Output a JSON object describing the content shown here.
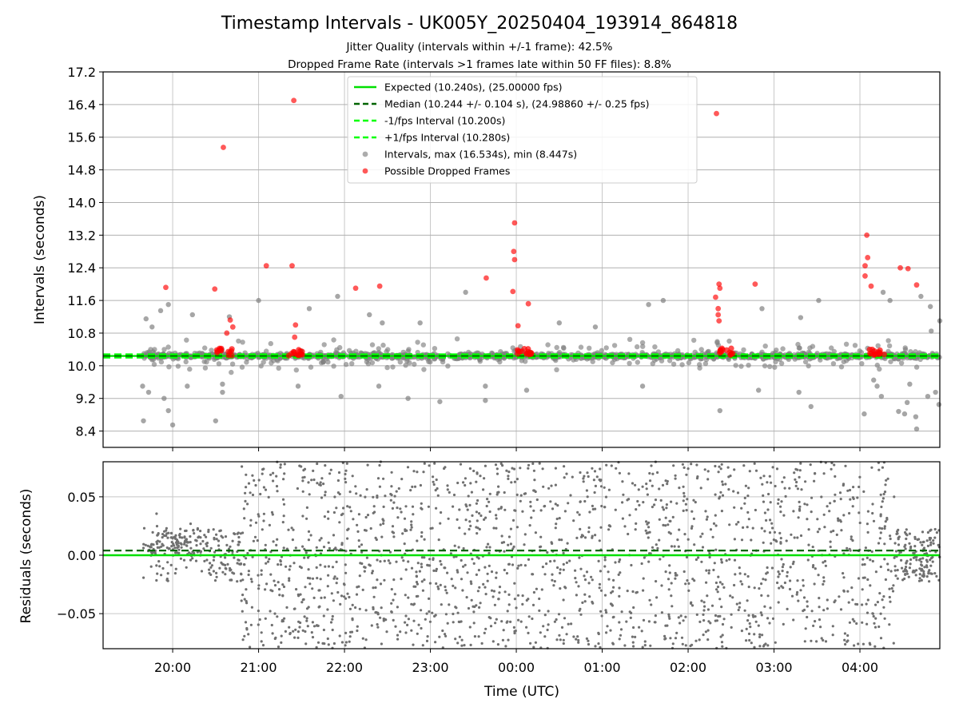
{
  "chart_data": [
    {
      "type": "scatter",
      "panel": "intervals",
      "title": "Timestamp Intervals - UK005Y_20250404_193914_864818",
      "subtitle_1": "Jitter Quality (intervals within +/-1 frame): 42.5%",
      "subtitle_2": "Dropped Frame Rate (intervals >1 frames late within 50 FF files): 8.8%",
      "ylabel": "Intervals (seconds)",
      "xlabel": "",
      "ylim": [
        8.0,
        17.2
      ],
      "y_ticks": [
        "17.2",
        "16.4",
        "15.6",
        "14.8",
        "14.0",
        "13.2",
        "12.4",
        "11.6",
        "10.8",
        "10.0",
        "9.2",
        "8.4"
      ],
      "y_tick_values": [
        17.2,
        16.4,
        15.6,
        14.8,
        14.0,
        13.2,
        12.4,
        11.6,
        10.8,
        10.0,
        9.2,
        8.4
      ],
      "x_range_hours": [
        -0.81,
        8.93
      ],
      "x_tick_hours": [
        0,
        1,
        2,
        3,
        4,
        5,
        6,
        7,
        8
      ],
      "grid": true,
      "legend_position": "top-center",
      "legend": [
        {
          "label": "Expected (10.240s), (25.00000 fps)",
          "style": "solid",
          "color": "#00e000"
        },
        {
          "label": "Median (10.244 +/- 0.104 s), (24.98860 +/- 0.25 fps)",
          "style": "dashed",
          "color": "#006400"
        },
        {
          "label": "-1/fps Interval (10.200s)",
          "style": "dashed",
          "color": "#00ff00"
        },
        {
          "label": "+1/fps Interval (10.280s)",
          "style": "dashed",
          "color": "#00ff00"
        },
        {
          "label": "Intervals, max (16.534s), min (8.447s)",
          "style": "marker",
          "color": "#808080"
        },
        {
          "label": "Possible Dropped Frames",
          "style": "marker",
          "color": "#ff0000"
        }
      ],
      "series": [
        {
          "name": "Expected (10.240s), (25.00000 fps)",
          "kind": "hline",
          "y": 10.24
        },
        {
          "name": "Median (10.244 +/- 0.104 s), (24.98860 +/- 0.25 fps)",
          "kind": "hline",
          "y": 10.244
        },
        {
          "name": "-1/fps Interval (10.200s)",
          "kind": "hline",
          "y": 10.2
        },
        {
          "name": "+1/fps Interval (10.280s)",
          "kind": "hline",
          "y": 10.28
        },
        {
          "name": "Possible Dropped Frames",
          "kind": "scatter",
          "points": [
            [
              -0.08,
              11.92
            ],
            [
              0.49,
              11.88
            ],
            [
              0.59,
              15.35
            ],
            [
              0.67,
              11.12
            ],
            [
              0.7,
              10.95
            ],
            [
              0.63,
              10.8
            ],
            [
              1.09,
              12.45
            ],
            [
              1.41,
              16.5
            ],
            [
              1.39,
              12.45
            ],
            [
              1.43,
              11.0
            ],
            [
              1.42,
              10.7
            ],
            [
              2.13,
              11.9
            ],
            [
              2.41,
              11.95
            ],
            [
              3.65,
              12.15
            ],
            [
              3.98,
              13.5
            ],
            [
              3.97,
              12.8
            ],
            [
              3.98,
              12.6
            ],
            [
              3.96,
              11.82
            ],
            [
              4.02,
              10.98
            ],
            [
              4.14,
              11.52
            ],
            [
              6.33,
              16.18
            ],
            [
              6.32,
              11.68
            ],
            [
              6.36,
              12.0
            ],
            [
              6.37,
              11.9
            ],
            [
              6.35,
              11.4
            ],
            [
              6.35,
              11.25
            ],
            [
              6.36,
              11.1
            ],
            [
              6.78,
              12.0
            ],
            [
              8.08,
              13.2
            ],
            [
              8.09,
              12.65
            ],
            [
              8.06,
              12.45
            ],
            [
              8.06,
              12.2
            ],
            [
              8.13,
              11.95
            ],
            [
              8.47,
              12.4
            ],
            [
              8.56,
              12.38
            ],
            [
              8.66,
              11.98
            ]
          ]
        },
        {
          "name": "Intervals, max (16.534s), min (8.447s)",
          "kind": "scatter",
          "points": [
            [
              -0.31,
              11.15
            ],
            [
              -0.24,
              10.95
            ],
            [
              -0.14,
              11.35
            ],
            [
              -0.05,
              11.5
            ],
            [
              0.23,
              11.25
            ],
            [
              0.66,
              11.2
            ],
            [
              1.0,
              11.6
            ],
            [
              1.59,
              11.4
            ],
            [
              1.92,
              11.7
            ],
            [
              2.29,
              11.25
            ],
            [
              2.44,
              11.05
            ],
            [
              2.88,
              11.05
            ],
            [
              3.41,
              11.8
            ],
            [
              4.5,
              11.05
            ],
            [
              4.92,
              10.95
            ],
            [
              5.54,
              11.5
            ],
            [
              5.71,
              11.6
            ],
            [
              6.86,
              11.4
            ],
            [
              7.31,
              11.18
            ],
            [
              7.52,
              11.6
            ],
            [
              8.27,
              11.8
            ],
            [
              8.35,
              11.6
            ],
            [
              8.71,
              11.7
            ],
            [
              8.82,
              11.45
            ],
            [
              8.83,
              10.85
            ],
            [
              8.93,
              11.1
            ],
            [
              -0.34,
              8.65
            ],
            [
              -0.35,
              9.5
            ],
            [
              -0.28,
              9.35
            ],
            [
              -0.1,
              9.2
            ],
            [
              -0.05,
              8.9
            ],
            [
              0.0,
              8.55
            ],
            [
              0.17,
              9.5
            ],
            [
              0.5,
              8.65
            ],
            [
              0.58,
              9.55
            ],
            [
              0.58,
              9.35
            ],
            [
              1.46,
              9.5
            ],
            [
              1.96,
              9.25
            ],
            [
              2.4,
              9.5
            ],
            [
              2.74,
              9.2
            ],
            [
              3.11,
              9.12
            ],
            [
              3.64,
              9.15
            ],
            [
              3.64,
              9.5
            ],
            [
              4.12,
              9.4
            ],
            [
              5.47,
              9.5
            ],
            [
              6.37,
              8.9
            ],
            [
              6.82,
              9.4
            ],
            [
              7.29,
              9.35
            ],
            [
              7.43,
              9.0
            ],
            [
              8.05,
              8.82
            ],
            [
              8.16,
              9.65
            ],
            [
              8.2,
              9.5
            ],
            [
              8.25,
              9.25
            ],
            [
              8.45,
              8.88
            ],
            [
              8.55,
              9.1
            ],
            [
              8.52,
              8.82
            ],
            [
              8.58,
              9.55
            ],
            [
              8.65,
              8.75
            ],
            [
              8.66,
              8.45
            ],
            [
              8.79,
              9.25
            ],
            [
              8.88,
              9.35
            ],
            [
              8.92,
              9.05
            ]
          ]
        }
      ]
    },
    {
      "type": "scatter",
      "panel": "residuals",
      "ylabel": "Residuals (seconds)",
      "xlabel": "Time (UTC)",
      "ylim": [
        -0.08,
        0.08
      ],
      "y_ticks": [
        "0.05",
        "0.00",
        "−0.05"
      ],
      "y_tick_values": [
        0.05,
        0.0,
        -0.05
      ],
      "x_tick_labels": [
        "20:00",
        "21:00",
        "22:00",
        "23:00",
        "00:00",
        "01:00",
        "02:00",
        "03:00",
        "04:00"
      ],
      "x_tick_hours": [
        0,
        1,
        2,
        3,
        4,
        5,
        6,
        7,
        8
      ],
      "x_range_hours": [
        -0.81,
        8.93
      ],
      "grid": true,
      "series": [
        {
          "name": "Expected",
          "kind": "hline",
          "y": 0.0
        },
        {
          "name": "Median",
          "kind": "hline",
          "y": 0.004
        }
      ]
    }
  ]
}
